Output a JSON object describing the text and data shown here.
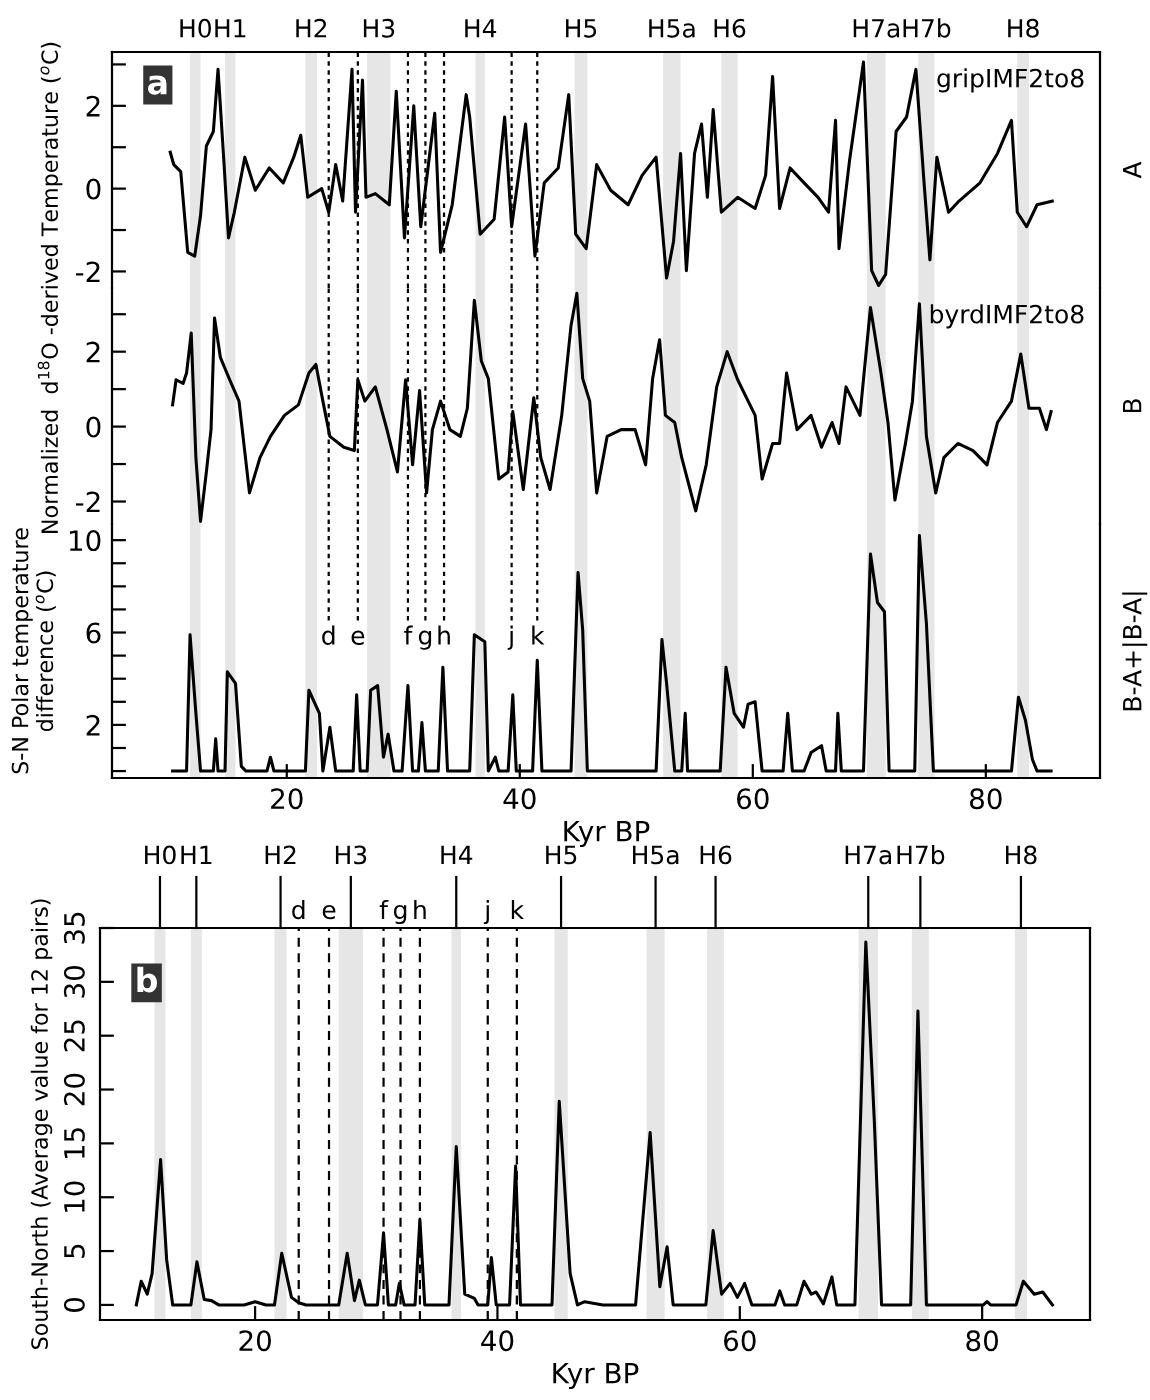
{
  "chart_data": [
    {
      "type": "line",
      "ylabel": "Normalized  d$^{18}$O -derived Temperature ($^{o}$C)",
      "y2label": "A",
      "annotations": [
        "a"
      ],
      "tick_labels": "y",
      "xlim": [
        5.0,
        89.8
      ],
      "ylim": [
        -2.4,
        3.3
      ],
      "yticks": [
        -2,
        {
          "value": -1,
          "label": null
        },
        0,
        {
          "value": 1,
          "label": null
        },
        2,
        {
          "value": 3,
          "label": null
        }
      ],
      "bands": [
        {
          "axis": "x",
          "from": 11.7,
          "to": 12.6,
          "label": "H0",
          "color": "#e6e6e6"
        },
        {
          "axis": "x",
          "from": 14.7,
          "to": 15.6,
          "label": "H1",
          "color": "#e6e6e6"
        },
        {
          "axis": "x",
          "from": 21.6,
          "to": 22.6,
          "label": "H2",
          "color": "#e6e6e6"
        },
        {
          "axis": "x",
          "from": 26.9,
          "to": 28.9,
          "label": "H3",
          "color": "#e6e6e6"
        },
        {
          "axis": "x",
          "from": 36.2,
          "to": 37.0,
          "label": "H4",
          "color": "#e6e6e6"
        },
        {
          "axis": "x",
          "from": 44.7,
          "to": 45.8,
          "label": "H5",
          "color": "#e6e6e6"
        },
        {
          "axis": "x",
          "from": 52.3,
          "to": 53.8,
          "label": "H5a",
          "color": "#e6e6e6"
        },
        {
          "axis": "x",
          "from": 57.3,
          "to": 58.7,
          "label": "H6",
          "color": "#e6e6e6"
        },
        {
          "axis": "x",
          "from": 69.8,
          "to": 71.4,
          "label": "H7a",
          "color": "#e6e6e6"
        },
        {
          "axis": "x",
          "from": 74.2,
          "to": 75.6,
          "label": "H7b",
          "color": "#e6e6e6"
        },
        {
          "axis": "x",
          "from": 82.7,
          "to": 83.7,
          "label": "H8",
          "color": "#e6e6e6"
        }
      ],
      "ref_lines": [
        {
          "axis": "x",
          "value": 23.6,
          "line_style": "dotted",
          "color": "#000000"
        },
        {
          "axis": "x",
          "value": 26.1,
          "line_style": "dotted",
          "color": "#000000"
        },
        {
          "axis": "x",
          "value": 30.4,
          "line_style": "dotted",
          "color": "#000000"
        },
        {
          "axis": "x",
          "value": 31.9,
          "line_style": "dotted",
          "color": "#000000"
        },
        {
          "axis": "x",
          "value": 33.5,
          "line_style": "dotted",
          "color": "#000000"
        },
        {
          "axis": "x",
          "value": 39.3,
          "line_style": "dotted",
          "color": "#000000"
        },
        {
          "axis": "x",
          "value": 41.5,
          "line_style": "dotted",
          "color": "#000000"
        }
      ],
      "series": [
        {
          "name": "gripIMF2to8",
          "color": "#000000",
          "x": [
            10.0,
            10.3,
            10.9,
            11.5,
            12.1,
            12.6,
            13.1,
            13.7,
            14.1,
            14.6,
            15.0,
            15.5,
            16.4,
            17.3,
            18.5,
            19.7,
            20.6,
            21.2,
            21.8,
            23.0,
            23.6,
            24.2,
            24.8,
            25.6,
            25.9,
            26.5,
            26.8,
            27.6,
            28.8,
            29.4,
            30.1,
            30.9,
            31.5,
            32.7,
            33.2,
            34.2,
            35.4,
            35.7,
            36.6,
            37.8,
            38.7,
            39.3,
            40.5,
            41.3,
            42.1,
            43.3,
            44.2,
            44.8,
            45.7,
            46.6,
            47.8,
            49.3,
            50.5,
            51.7,
            52.6,
            53.2,
            53.8,
            54.3,
            55.0,
            55.6,
            56.1,
            56.6,
            57.3,
            58.7,
            60.2,
            61.1,
            61.7,
            62.3,
            63.2,
            64.4,
            65.6,
            66.5,
            67.1,
            67.4,
            68.3,
            69.5,
            70.2,
            70.8,
            71.4,
            72.3,
            73.2,
            74.0,
            74.7,
            75.2,
            75.8,
            76.8,
            77.7,
            79.5,
            81.0,
            82.2,
            82.7,
            83.5,
            84.4,
            85.7
          ],
          "values": [
            0.88,
            0.58,
            0.41,
            -1.54,
            -1.63,
            -0.65,
            1.03,
            1.38,
            2.88,
            0.67,
            -1.19,
            -0.57,
            0.76,
            -0.04,
            0.5,
            0.14,
            0.76,
            1.29,
            -0.21,
            0,
            -0.57,
            0.58,
            -0.3,
            2.88,
            -0.57,
            2.62,
            -0.21,
            -0.12,
            -0.39,
            2.35,
            -1.19,
            2.0,
            -0.92,
            1.82,
            -1.54,
            -0.39,
            2.27,
            1.73,
            -1.1,
            -0.74,
            1.73,
            -0.92,
            1.56,
            -1.63,
            0.14,
            0.5,
            2.27,
            -1.1,
            -1.45,
            0.58,
            -0.04,
            -0.39,
            0.32,
            0.76,
            -2.16,
            -1.27,
            0.85,
            -1.98,
            0.85,
            1.56,
            -0.21,
            1.91,
            -0.57,
            -0.21,
            -0.48,
            0.32,
            2.71,
            -0.48,
            0.5,
            0.14,
            -0.21,
            -0.57,
            1.65,
            -1.45,
            0.67,
            3.06,
            -1.98,
            -2.34,
            -2.07,
            1.38,
            1.73,
            2.88,
            0.14,
            -1.72,
            0.76,
            -0.57,
            -0.3,
            0.14,
            0.85,
            1.65,
            -0.57,
            -0.92,
            -0.39,
            -0.3
          ]
        }
      ]
    },
    {
      "type": "line",
      "y2label": "B",
      "tick_labels": "y",
      "xlim": [
        5.0,
        89.8
      ],
      "ylim": [
        -2.6,
        3.7
      ],
      "yticks": [
        -2,
        {
          "value": -1,
          "label": null
        },
        0,
        {
          "value": 1,
          "label": null
        },
        2,
        {
          "value": 3,
          "label": null
        }
      ],
      "bands": [
        {
          "axis": "x",
          "from": 11.7,
          "to": 12.6,
          "color": "#e6e6e6"
        },
        {
          "axis": "x",
          "from": 14.7,
          "to": 15.6,
          "color": "#e6e6e6"
        },
        {
          "axis": "x",
          "from": 21.6,
          "to": 22.6,
          "color": "#e6e6e6"
        },
        {
          "axis": "x",
          "from": 26.9,
          "to": 28.9,
          "color": "#e6e6e6"
        },
        {
          "axis": "x",
          "from": 36.2,
          "to": 37.0,
          "color": "#e6e6e6"
        },
        {
          "axis": "x",
          "from": 44.7,
          "to": 45.8,
          "color": "#e6e6e6"
        },
        {
          "axis": "x",
          "from": 52.3,
          "to": 53.8,
          "color": "#e6e6e6"
        },
        {
          "axis": "x",
          "from": 57.3,
          "to": 58.7,
          "color": "#e6e6e6"
        },
        {
          "axis": "x",
          "from": 69.8,
          "to": 71.4,
          "color": "#e6e6e6"
        },
        {
          "axis": "x",
          "from": 74.2,
          "to": 75.6,
          "color": "#e6e6e6"
        },
        {
          "axis": "x",
          "from": 82.7,
          "to": 83.7,
          "color": "#e6e6e6"
        }
      ],
      "ref_lines": [
        {
          "axis": "x",
          "value": 23.6,
          "line_style": "dotted",
          "color": "#000000"
        },
        {
          "axis": "x",
          "value": 26.1,
          "line_style": "dotted",
          "color": "#000000"
        },
        {
          "axis": "x",
          "value": 30.4,
          "line_style": "dotted",
          "color": "#000000"
        },
        {
          "axis": "x",
          "value": 31.9,
          "line_style": "dotted",
          "color": "#000000"
        },
        {
          "axis": "x",
          "value": 33.5,
          "line_style": "dotted",
          "color": "#000000"
        },
        {
          "axis": "x",
          "value": 39.3,
          "line_style": "dotted",
          "color": "#000000"
        },
        {
          "axis": "x",
          "value": 41.5,
          "line_style": "dotted",
          "color": "#000000"
        }
      ],
      "series": [
        {
          "name": "byrdIMF2to8",
          "color": "#000000",
          "x": [
            10.2,
            10.5,
            11.1,
            11.4,
            11.8,
            12.2,
            12.6,
            13.1,
            13.5,
            13.8,
            14.3,
            15.1,
            15.9,
            16.8,
            17.7,
            18.6,
            19.8,
            21.0,
            21.9,
            22.5,
            23.1,
            23.7,
            24.9,
            25.8,
            26.1,
            26.7,
            27.6,
            28.6,
            29.5,
            30.2,
            30.8,
            31.4,
            32.0,
            32.5,
            33.2,
            34.0,
            34.9,
            35.5,
            36.1,
            36.7,
            37.3,
            38.2,
            39.0,
            39.4,
            40.3,
            41.2,
            41.8,
            42.6,
            43.6,
            44.4,
            44.9,
            45.4,
            46.0,
            46.6,
            47.5,
            48.7,
            49.9,
            50.8,
            51.4,
            52.0,
            52.5,
            53.3,
            53.9,
            55.1,
            56.0,
            56.9,
            57.8,
            58.7,
            59.6,
            60.2,
            60.8,
            61.7,
            62.3,
            62.9,
            63.8,
            65.0,
            65.9,
            66.8,
            67.4,
            68.0,
            69.2,
            70.1,
            71.0,
            71.6,
            72.2,
            73.1,
            73.7,
            74.3,
            74.9,
            75.7,
            76.4,
            77.6,
            78.9,
            80.1,
            81.0,
            82.2,
            83.0,
            83.7,
            84.6,
            85.2,
            85.6
          ],
          "values": [
            0.58,
            1.25,
            1.15,
            1.43,
            2.5,
            -0.83,
            -2.53,
            -1.21,
            -0.08,
            2.9,
            1.85,
            1.25,
            0.68,
            -1.77,
            -0.83,
            -0.26,
            0.3,
            0.58,
            1.43,
            1.66,
            0.68,
            -0.26,
            -0.55,
            -0.64,
            1.25,
            0.68,
            1.06,
            -0.08,
            -1.21,
            1.25,
            -1.02,
            0.96,
            -1.77,
            -0.08,
            0.68,
            -0.08,
            -0.26,
            0.49,
            3.37,
            1.75,
            1.28,
            -1.4,
            -1.21,
            0.4,
            -1.68,
            0.77,
            -0.83,
            -1.68,
            0.3,
            2.7,
            3.56,
            1.28,
            0.68,
            -1.77,
            -0.26,
            -0.08,
            -0.08,
            -1.02,
            1.28,
            2.32,
            0.3,
            0.11,
            -0.83,
            -2.25,
            -1.02,
            1.06,
            2.0,
            1.25,
            0.68,
            0.3,
            -1.4,
            -0.45,
            -0.45,
            1.43,
            -0.08,
            0.3,
            -0.55,
            0.11,
            -0.45,
            1.06,
            0.3,
            3.18,
            1.43,
            0.11,
            -1.96,
            -0.45,
            0.68,
            3.28,
            -0.26,
            -1.77,
            -0.83,
            -0.45,
            -0.64,
            -1.02,
            0.11,
            0.68,
            1.94,
            0.49,
            0.49,
            -0.08,
            0.4
          ]
        }
      ]
    },
    {
      "type": "line",
      "ylabel": "S-N Polar temperature\ndifference ($^{o}$C)",
      "y2label": "B-A+|B-A|",
      "xlabel": "Kyr BP",
      "xlim": [
        5.0,
        89.8
      ],
      "ylim": [
        -0.3,
        10.7
      ],
      "xticks": [
        20,
        40,
        60,
        80
      ],
      "yticks": [
        {
          "value": 0,
          "label": null
        },
        {
          "value": 1,
          "label": null
        },
        2,
        {
          "value": 3,
          "label": null
        },
        {
          "value": 4,
          "label": null
        },
        {
          "value": 5,
          "label": null
        },
        6,
        {
          "value": 7,
          "label": null
        },
        {
          "value": 8,
          "label": null
        },
        {
          "value": 9,
          "label": null
        },
        10
      ],
      "ref_lines": [
        {
          "axis": "x",
          "value": 23.6,
          "label": "d",
          "line_style": "dotted",
          "color": "#000000"
        },
        {
          "axis": "x",
          "value": 26.1,
          "label": "e",
          "line_style": "dotted",
          "color": "#000000"
        },
        {
          "axis": "x",
          "value": 30.4,
          "label": "f",
          "line_style": "dotted",
          "color": "#000000"
        },
        {
          "axis": "x",
          "value": 31.9,
          "label": "g",
          "line_style": "dotted",
          "color": "#000000"
        },
        {
          "axis": "x",
          "value": 33.5,
          "label": "h",
          "line_style": "dotted",
          "color": "#000000"
        },
        {
          "axis": "x",
          "value": 39.3,
          "label": "j",
          "line_style": "dotted",
          "color": "#000000"
        },
        {
          "axis": "x",
          "value": 41.5,
          "label": "k",
          "line_style": "dotted",
          "color": "#000000"
        }
      ],
      "bands": [
        {
          "axis": "x",
          "from": 11.7,
          "to": 12.6,
          "color": "#e6e6e6"
        },
        {
          "axis": "x",
          "from": 14.7,
          "to": 15.6,
          "color": "#e6e6e6"
        },
        {
          "axis": "x",
          "from": 21.6,
          "to": 22.6,
          "color": "#e6e6e6"
        },
        {
          "axis": "x",
          "from": 26.9,
          "to": 28.9,
          "color": "#e6e6e6"
        },
        {
          "axis": "x",
          "from": 36.2,
          "to": 37.0,
          "color": "#e6e6e6"
        },
        {
          "axis": "x",
          "from": 44.7,
          "to": 45.8,
          "color": "#e6e6e6"
        },
        {
          "axis": "x",
          "from": 52.3,
          "to": 53.8,
          "color": "#e6e6e6"
        },
        {
          "axis": "x",
          "from": 57.3,
          "to": 58.7,
          "color": "#e6e6e6"
        },
        {
          "axis": "x",
          "from": 69.8,
          "to": 71.4,
          "color": "#e6e6e6"
        },
        {
          "axis": "x",
          "from": 74.2,
          "to": 75.6,
          "color": "#e6e6e6"
        },
        {
          "axis": "x",
          "from": 82.7,
          "to": 83.7,
          "color": "#e6e6e6"
        }
      ],
      "series": [
        {
          "color": "#000000",
          "x": [
            10.2,
            11.4,
            11.7,
            12.2,
            12.6,
            13.7,
            13.9,
            14.1,
            14.7,
            14.9,
            15.6,
            16.1,
            16.5,
            18.3,
            18.6,
            18.9,
            21.6,
            21.9,
            22.8,
            23.1,
            23.7,
            24.2,
            25.7,
            26.0,
            26.3,
            26.9,
            27.2,
            27.8,
            28.3,
            28.7,
            29.2,
            29.9,
            30.4,
            30.8,
            31.3,
            31.6,
            31.9,
            33.0,
            33.4,
            33.8,
            35.7,
            36.1,
            37.0,
            37.3,
            37.9,
            38.2,
            39.0,
            39.4,
            39.7,
            41.1,
            41.5,
            41.9,
            44.4,
            45.0,
            45.4,
            45.8,
            51.7,
            52.2,
            52.6,
            53.3,
            53.9,
            54.2,
            54.4,
            57.2,
            57.7,
            58.4,
            59.2,
            59.6,
            60.2,
            60.8,
            62.6,
            63.0,
            63.4,
            64.4,
            65.0,
            65.9,
            66.3,
            67.1,
            67.3,
            67.6,
            69.5,
            70.1,
            70.7,
            71.3,
            71.7,
            73.9,
            74.3,
            74.9,
            75.5,
            82.2,
            82.8,
            83.4,
            84.0,
            84.4,
            85.6
          ],
          "values": [
            0,
            0,
            5.9,
            2.5,
            0,
            0,
            1.4,
            0,
            0,
            4.3,
            3.8,
            0.2,
            0,
            0,
            0.6,
            0,
            0,
            3.5,
            2.5,
            0,
            1.9,
            0,
            0,
            3.3,
            0,
            0,
            3.5,
            3.7,
            0.6,
            1.6,
            0,
            0,
            3.7,
            0,
            0,
            2.1,
            0,
            0,
            4.5,
            0,
            0,
            5.9,
            5.6,
            0,
            0.6,
            0,
            0,
            3.3,
            0,
            0,
            4.8,
            0,
            0,
            8.6,
            6.1,
            0,
            0,
            5.7,
            3.8,
            0,
            0,
            2.5,
            0,
            0,
            4.5,
            2.5,
            1.9,
            2.9,
            3.0,
            0,
            0,
            2.5,
            0,
            0,
            0.8,
            1.1,
            0,
            0,
            2.5,
            0,
            0,
            9.4,
            7.3,
            6.9,
            0,
            0,
            10.2,
            6.4,
            0,
            0,
            3.2,
            2.2,
            0.5,
            0,
            0
          ]
        }
      ]
    },
    {
      "type": "line",
      "ylabel": "South-North (Average value for 12 pairs)",
      "xlabel": "Kyr BP",
      "annotations": [
        "b"
      ],
      "xlim": [
        7.2,
        88.9
      ],
      "ylim": [
        -1.4,
        35
      ],
      "xticks": [
        20,
        40,
        60,
        80
      ],
      "yticks": [
        0,
        5,
        10,
        15,
        20,
        25,
        30,
        35
      ],
      "bands": [
        {
          "axis": "x",
          "from": 11.7,
          "to": 12.6,
          "label": "H0",
          "color": "#e6e6e6"
        },
        {
          "axis": "x",
          "from": 14.7,
          "to": 15.6,
          "label": "H1",
          "color": "#e6e6e6"
        },
        {
          "axis": "x",
          "from": 21.6,
          "to": 22.6,
          "label": "H2",
          "color": "#e6e6e6"
        },
        {
          "axis": "x",
          "from": 26.9,
          "to": 28.9,
          "label": "H3",
          "color": "#e6e6e6"
        },
        {
          "axis": "x",
          "from": 36.2,
          "to": 37.0,
          "label": "H4",
          "color": "#e6e6e6"
        },
        {
          "axis": "x",
          "from": 44.7,
          "to": 45.8,
          "label": "H5",
          "color": "#e6e6e6"
        },
        {
          "axis": "x",
          "from": 52.3,
          "to": 53.8,
          "label": "H5a",
          "color": "#e6e6e6"
        },
        {
          "axis": "x",
          "from": 57.3,
          "to": 58.7,
          "label": "H6",
          "color": "#e6e6e6"
        },
        {
          "axis": "x",
          "from": 69.8,
          "to": 71.4,
          "label": "H7a",
          "color": "#e6e6e6"
        },
        {
          "axis": "x",
          "from": 74.2,
          "to": 75.6,
          "label": "H7b",
          "color": "#e6e6e6"
        },
        {
          "axis": "x",
          "from": 82.7,
          "to": 83.7,
          "label": "H8",
          "color": "#e6e6e6"
        }
      ],
      "ref_lines": [
        {
          "axis": "x",
          "value": 23.6,
          "label": "d",
          "line_style": "dashed",
          "color": "#000000"
        },
        {
          "axis": "x",
          "value": 26.1,
          "label": "e",
          "line_style": "dashed",
          "color": "#000000"
        },
        {
          "axis": "x",
          "value": 30.6,
          "label": "f",
          "line_style": "dashed",
          "color": "#000000"
        },
        {
          "axis": "x",
          "value": 32.0,
          "label": "g",
          "line_style": "dashed",
          "color": "#000000"
        },
        {
          "axis": "x",
          "value": 33.6,
          "label": "h",
          "line_style": "dashed",
          "color": "#000000"
        },
        {
          "axis": "x",
          "value": 39.2,
          "label": "j",
          "line_style": "dashed",
          "color": "#000000"
        },
        {
          "axis": "x",
          "value": 41.6,
          "label": "k",
          "line_style": "dashed",
          "color": "#000000"
        }
      ],
      "series": [
        {
          "color": "#000000",
          "x": [
            10.2,
            10.6,
            11.1,
            11.5,
            12.2,
            12.7,
            13.2,
            14.7,
            15.2,
            15.8,
            16.4,
            17.0,
            19.1,
            20.0,
            20.9,
            21.6,
            22.2,
            23.0,
            23.6,
            24.2,
            26.9,
            27.6,
            28.2,
            28.6,
            29.1,
            30.1,
            30.6,
            31.0,
            31.6,
            31.9,
            32.3,
            33.2,
            33.6,
            34.0,
            36.0,
            36.6,
            37.3,
            38.1,
            38.4,
            39.2,
            39.5,
            39.9,
            41.0,
            41.5,
            41.9,
            44.5,
            45.1,
            46.0,
            46.6,
            47.2,
            48.7,
            51.4,
            52.6,
            53.4,
            54.0,
            54.5,
            57.2,
            57.8,
            58.5,
            59.2,
            59.8,
            60.4,
            61.0,
            62.9,
            63.3,
            63.7,
            64.7,
            65.3,
            65.9,
            66.3,
            66.9,
            67.6,
            68.0,
            69.5,
            70.4,
            71.1,
            71.7,
            74.1,
            74.7,
            75.4,
            80.1,
            80.4,
            80.7,
            82.8,
            83.4,
            84.3,
            85.0,
            85.8
          ],
          "values": [
            0,
            2.2,
            1.0,
            2.9,
            13.5,
            4.2,
            0,
            0,
            4.0,
            0.5,
            0.4,
            0,
            0,
            0.3,
            0,
            0,
            4.8,
            0.7,
            0.2,
            0,
            0,
            4.8,
            0.4,
            2.3,
            0,
            0,
            6.7,
            0,
            0,
            2.0,
            0,
            0,
            7.9,
            0,
            0,
            14.7,
            1.0,
            0.6,
            0,
            0,
            4.4,
            0,
            0,
            12.9,
            0,
            0,
            18.9,
            2.9,
            0,
            0.3,
            0,
            0,
            16.0,
            1.7,
            5.4,
            0,
            0,
            6.9,
            1.0,
            2.0,
            0.7,
            2.0,
            0,
            0,
            1.3,
            0,
            0,
            2.2,
            1.0,
            1.2,
            0.1,
            2.6,
            0,
            0,
            33.7,
            17.1,
            0,
            0,
            27.3,
            0,
            0,
            0.3,
            0,
            0,
            2.2,
            1.0,
            1.2,
            0
          ]
        }
      ]
    }
  ]
}
